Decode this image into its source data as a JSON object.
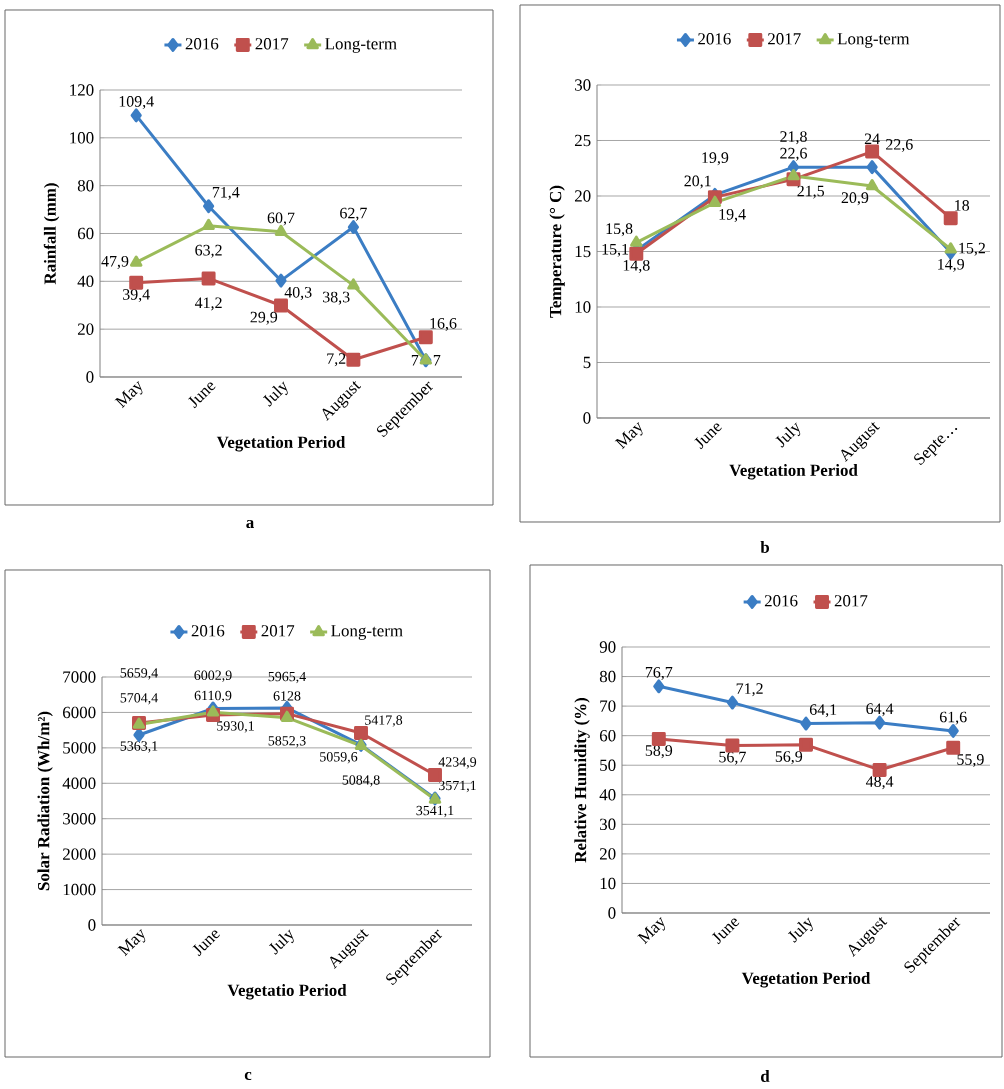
{
  "chart_data": [
    {
      "type": "line",
      "ylabel": "Rainfall (mm)",
      "xlabel": "Vegetation Period",
      "categories": [
        "May",
        "June",
        "July",
        "August",
        "September"
      ],
      "ylim": [
        0,
        120
      ],
      "yticks": [
        0,
        20,
        40,
        60,
        80,
        100,
        120
      ],
      "grid": "y",
      "legend": "top",
      "annotations": [
        "a"
      ],
      "series": [
        {
          "name": "2016",
          "color": "#3b7dc4",
          "marker": "diamond",
          "values": [
            109.4,
            71.4,
            40.3,
            62.7,
            7
          ],
          "value_labels": [
            "109,4",
            "71,4",
            "40,3",
            "62,7",
            "7"
          ]
        },
        {
          "name": "2017",
          "color": "#c0504d",
          "marker": "square",
          "values": [
            39.4,
            41.2,
            29.9,
            7.2,
            16.6
          ],
          "value_labels": [
            "39,4",
            "41,2",
            "29,9",
            "7,2",
            "16,6"
          ]
        },
        {
          "name": "Long-term",
          "color": "#9bbb59",
          "marker": "triangle",
          "values": [
            47.9,
            63.2,
            60.7,
            38.3,
            7
          ],
          "value_labels": [
            "47,9",
            "63,2",
            "60,7",
            "38,3",
            "7"
          ]
        }
      ]
    },
    {
      "type": "line",
      "ylabel": "Temperature (° C)",
      "xlabel": "Vegetation Period",
      "categories": [
        "May",
        "June",
        "July",
        "August",
        "Septe…"
      ],
      "ylim": [
        0,
        30
      ],
      "yticks": [
        0,
        5,
        10,
        15,
        20,
        25,
        30
      ],
      "grid": "y",
      "legend": "top",
      "annotations": [
        "b"
      ],
      "series": [
        {
          "name": "2016",
          "color": "#3b7dc4",
          "marker": "diamond",
          "values": [
            15.1,
            20.1,
            22.6,
            22.6,
            14.9
          ],
          "value_labels": [
            "15,1",
            "20,1",
            "22,6",
            "22,6",
            "14,9"
          ]
        },
        {
          "name": "2017",
          "color": "#c0504d",
          "marker": "square",
          "values": [
            14.8,
            19.9,
            21.5,
            24,
            18
          ],
          "value_labels": [
            "14,8",
            "19,9",
            "21,5",
            "24",
            "18"
          ]
        },
        {
          "name": "Long-term",
          "color": "#9bbb59",
          "marker": "triangle",
          "values": [
            15.8,
            19.4,
            21.8,
            20.9,
            15.2
          ],
          "value_labels": [
            "15,8",
            "19,4",
            "21,8",
            "20,9",
            "15,2"
          ]
        }
      ]
    },
    {
      "type": "line",
      "ylabel": "Solar Radiation (Wh/m²)",
      "xlabel": "Vegetatio Period",
      "categories": [
        "May",
        "June",
        "July",
        "August",
        "September"
      ],
      "ylim": [
        0,
        7000
      ],
      "yticks": [
        0,
        1000,
        2000,
        3000,
        4000,
        5000,
        6000,
        7000
      ],
      "grid": "y",
      "legend": "top",
      "annotations": [
        "c"
      ],
      "series": [
        {
          "name": "2016",
          "color": "#3b7dc4",
          "marker": "diamond",
          "values": [
            5363.1,
            6110.9,
            6128,
            5084.8,
            3571.1
          ],
          "value_labels": [
            "5363,1",
            "6110,9",
            "6128",
            "5084,8",
            "3571,1"
          ]
        },
        {
          "name": "2017",
          "color": "#c0504d",
          "marker": "square",
          "values": [
            5704.4,
            5930.1,
            5965.4,
            5417.8,
            4234.9
          ],
          "value_labels": [
            "5704,4",
            "5930,1",
            "5965,4",
            "5417,8",
            "4234,9"
          ]
        },
        {
          "name": "Long-term",
          "color": "#9bbb59",
          "marker": "triangle",
          "values": [
            5659.4,
            6002.9,
            5852.3,
            5059.6,
            3541.1
          ],
          "value_labels": [
            "5659,4",
            "6002,9",
            "5852,3",
            "5059,6",
            "3541,1"
          ]
        }
      ]
    },
    {
      "type": "line",
      "ylabel": "Relative Humidity (%)",
      "xlabel": "Vegetation Period",
      "categories": [
        "May",
        "June",
        "July",
        "August",
        "September"
      ],
      "ylim": [
        0,
        90
      ],
      "yticks": [
        0,
        10,
        20,
        30,
        40,
        50,
        60,
        70,
        80,
        90
      ],
      "grid": "y",
      "legend": "top",
      "annotations": [
        "d"
      ],
      "series": [
        {
          "name": "2016",
          "color": "#3b7dc4",
          "marker": "diamond",
          "values": [
            76.7,
            71.2,
            64.1,
            64.4,
            61.6
          ],
          "value_labels": [
            "76,7",
            "71,2",
            "64,1",
            "64,4",
            "61,6"
          ]
        },
        {
          "name": "2017",
          "color": "#c0504d",
          "marker": "square",
          "values": [
            58.9,
            56.7,
            56.9,
            48.4,
            55.9
          ],
          "value_labels": [
            "58,9",
            "56,7",
            "56,9",
            "48,4",
            "55,9"
          ]
        }
      ]
    }
  ]
}
